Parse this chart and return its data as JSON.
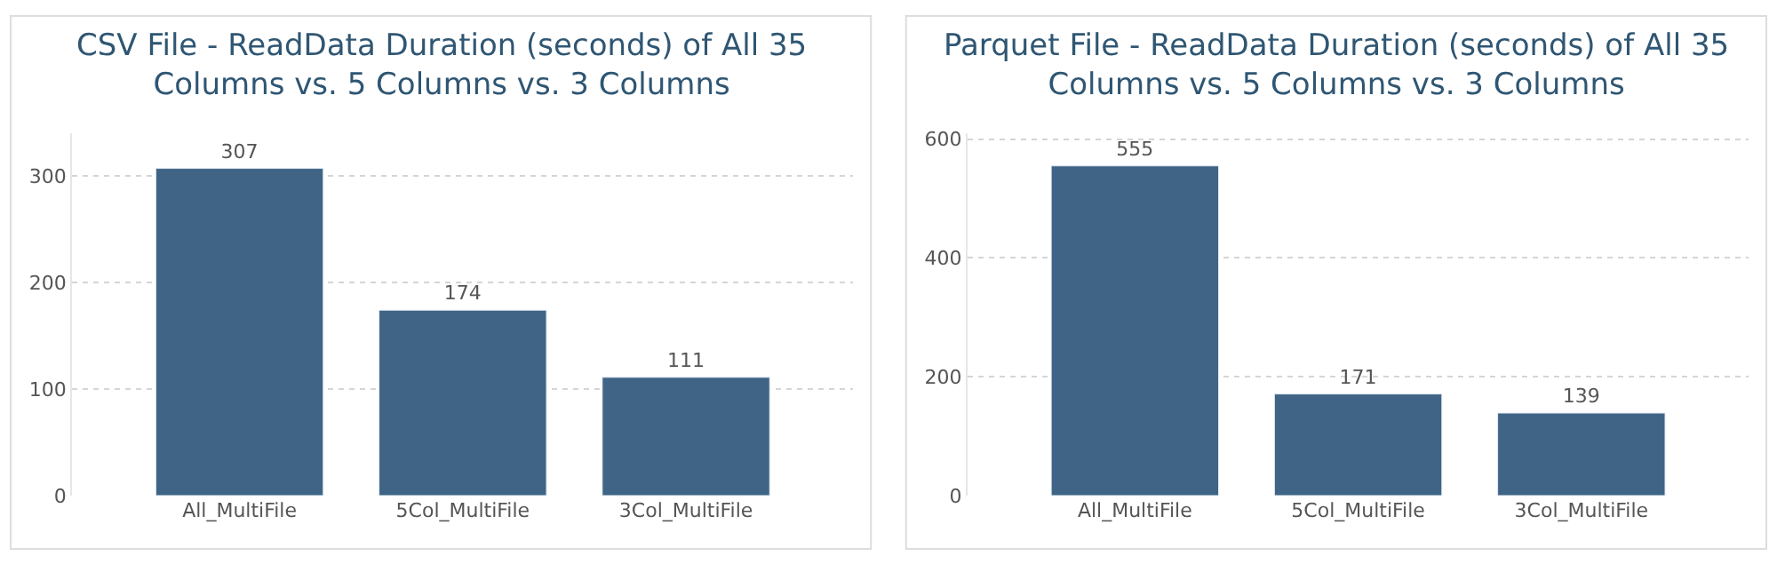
{
  "chart_data": [
    {
      "type": "bar",
      "title": "CSV File - ReadData Duration (seconds) of All 35 Columns vs. 5 Columns vs. 3 Columns",
      "categories": [
        "All_MultiFile",
        "5Col_MultiFile",
        "3Col_MultiFile"
      ],
      "values": [
        307,
        174,
        111
      ],
      "color": "#3f6485",
      "ylim": [
        0,
        340
      ],
      "yticks": [
        0,
        100,
        200,
        300
      ],
      "grid": "y",
      "data_labels": true
    },
    {
      "type": "bar",
      "title": "Parquet File - ReadData Duration (seconds) of All 35 Columns vs. 5 Columns vs. 3 Columns",
      "categories": [
        "All_MultiFile",
        "5Col_MultiFile",
        "3Col_MultiFile"
      ],
      "values": [
        555,
        171,
        139
      ],
      "color": "#3f6485",
      "ylim": [
        0,
        610
      ],
      "yticks": [
        0,
        200,
        400,
        600
      ],
      "grid": "y",
      "data_labels": true
    }
  ]
}
